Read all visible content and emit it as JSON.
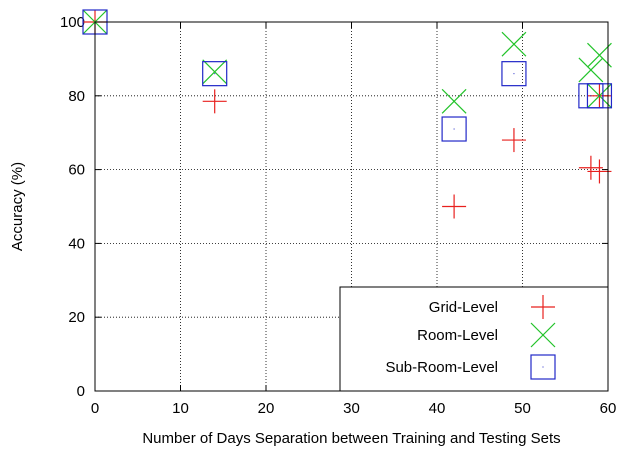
{
  "chart_data": {
    "type": "scatter",
    "title": "",
    "xlabel": "Number of Days Separation between Training and Testing Sets",
    "ylabel": "Accuracy (%)",
    "xlim": [
      0,
      60
    ],
    "ylim": [
      0,
      100
    ],
    "xticks": [
      0,
      10,
      20,
      30,
      40,
      50,
      60
    ],
    "yticks": [
      0,
      20,
      40,
      60,
      80,
      100
    ],
    "grid": true,
    "legend_position": "bottom-right",
    "series": [
      {
        "name": "Grid-Level",
        "marker": "plus",
        "color": "#e8201e",
        "points": [
          [
            0,
            100
          ],
          [
            14,
            78.5
          ],
          [
            42,
            50
          ],
          [
            49,
            68
          ],
          [
            58,
            60.5
          ],
          [
            59,
            59.5
          ],
          [
            59,
            80
          ]
        ]
      },
      {
        "name": "Room-Level",
        "marker": "cross",
        "color": "#22c32a",
        "points": [
          [
            0,
            100
          ],
          [
            14,
            86.5
          ],
          [
            42,
            78.5
          ],
          [
            49,
            94
          ],
          [
            58,
            87
          ],
          [
            59,
            91
          ],
          [
            59,
            80
          ]
        ]
      },
      {
        "name": "Sub-Room-Level",
        "marker": "square",
        "color": "#2128c8",
        "points": [
          [
            0,
            100
          ],
          [
            14,
            86
          ],
          [
            42,
            71
          ],
          [
            49,
            86
          ],
          [
            58,
            80
          ],
          [
            59,
            80
          ]
        ]
      }
    ]
  }
}
